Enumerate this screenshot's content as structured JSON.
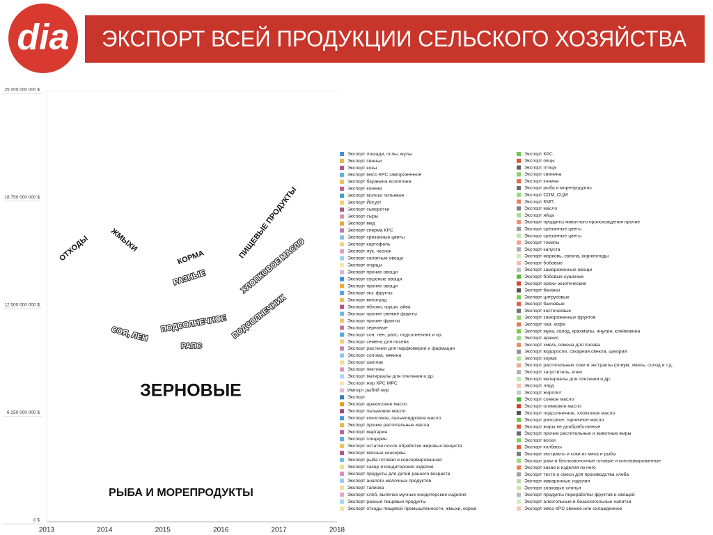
{
  "logo": "dia",
  "chart_data": {
    "type": "stacked_area",
    "title": "ЭКСПОРТ ВСЕЙ ПРОДУКЦИИ СЕЛЬСКОГО ХОЗЯЙСТВА",
    "categories": [
      "2013",
      "2014",
      "2015",
      "2016",
      "2017",
      "2018"
    ],
    "ylim": [
      0,
      25000000000
    ],
    "yticks": [
      {
        "value": 0,
        "label": "0 $"
      },
      {
        "value": 6250000000,
        "label": "6 250 000 000 $"
      },
      {
        "value": 12500000000,
        "label": "12 500 000 000 $"
      },
      {
        "value": 18750000000,
        "label": "18 750 000 000 $"
      },
      {
        "value": 25000000000,
        "label": "25 000 000 000 $"
      }
    ],
    "annotations": [
      "ОТХОДЫ",
      "ЖМЫХИ",
      "КОРМА",
      "ПИЩЕВЫЕ ПРОДУКТЫ",
      "РАЗНЫЕ",
      "ХЛОПКОВОЕ МАСЛО",
      "ПОДСОЛНЕЧНОЕ",
      "ПОДСОЛНЕЧНИК",
      "СОЯ, ЛЕН",
      "РАПС",
      "ЗЕРНОВЫЕ",
      "РЫБА И МОРЕПРОДУКТЫ"
    ],
    "series": [
      {
        "name": "Экспорт лошади, ослы, мулы",
        "color": "#4a90d9"
      },
      {
        "name": "Экспорт свиньи",
        "color": "#e8b64a"
      },
      {
        "name": "Экспорт козы",
        "color": "#b05a8e"
      },
      {
        "name": "Экспорт мясо КРС замороженное",
        "color": "#5fb0e0"
      },
      {
        "name": "Экспорт баранина козлятина",
        "color": "#f0c060"
      },
      {
        "name": "Экспорт конина",
        "color": "#c0608f"
      },
      {
        "name": "Экспорт молоко питьевое",
        "color": "#3fa0c8"
      },
      {
        "name": "Экспорт Йогурт",
        "color": "#f5d070"
      },
      {
        "name": "Экспорт сыворотки",
        "color": "#a65a88"
      },
      {
        "name": "Экспорт сыры",
        "color": "#d88fb8"
      },
      {
        "name": "Экспорт мед",
        "color": "#e8a840"
      },
      {
        "name": "Экспорт сперма КРС",
        "color": "#c878a8"
      },
      {
        "name": "Экспорт срезанные цветы",
        "color": "#7fc0e8"
      },
      {
        "name": "Экспорт картофель",
        "color": "#f2d488"
      },
      {
        "name": "Экспорт лук, чеснок",
        "color": "#d8a0c4"
      },
      {
        "name": "Экспорт салатные овощи",
        "color": "#9ccff0"
      },
      {
        "name": "Экспорт огурцы",
        "color": "#f8e4a8"
      },
      {
        "name": "Экспорт прочие овощи",
        "color": "#e0b0d0"
      },
      {
        "name": "Экспорт сушеные овощи",
        "color": "#3a8fd0"
      },
      {
        "name": "Экспорт прочие овощи",
        "color": "#f0a830"
      },
      {
        "name": "Экспорт экз. фрукты",
        "color": "#5aa0e0"
      },
      {
        "name": "Экспорт виноград",
        "color": "#e8c050"
      },
      {
        "name": "Экспорт яблоки, груши, айва",
        "color": "#b8508a"
      },
      {
        "name": "Экспорт прочие свежие фрукты",
        "color": "#70b8e8"
      },
      {
        "name": "Экспорт прочие фрукты",
        "color": "#f0c868"
      },
      {
        "name": "Экспорт зерновые",
        "color": "#c4739e"
      },
      {
        "name": "Экспорт соя, лен, рапс, подсолнечник и пр.",
        "color": "#5aa6e6"
      },
      {
        "name": "Экспорт семена для посева",
        "color": "#f0d070"
      },
      {
        "name": "Экспорт растения для парфюмерии и фармации",
        "color": "#c880b0"
      },
      {
        "name": "Экспорт солома, мякина",
        "color": "#8cc8f0"
      },
      {
        "name": "Экспорт шеллак",
        "color": "#f4dc90"
      },
      {
        "name": "Экспорт пектины",
        "color": "#d898c0"
      },
      {
        "name": "Экспорт материалы для плетения и др.",
        "color": "#a8d8f4"
      },
      {
        "name": "Экспорт жир КРС МРС",
        "color": "#f6e4b0"
      },
      {
        "name": "Импорт рыбий жир",
        "color": "#e4b8d4"
      },
      {
        "name": "Экспорт",
        "color": "#2f80c8"
      },
      {
        "name": "Экспорт арахисовое масло",
        "color": "#e8a020"
      },
      {
        "name": "Экспорт пальмовое масло",
        "color": "#a04880"
      },
      {
        "name": "Экспорт кокосовое, пальмоядровое масло",
        "color": "#4898d8"
      },
      {
        "name": "Экспорт прочие растительные масла",
        "color": "#ecb848"
      },
      {
        "name": "Экспорт маргарин",
        "color": "#b86898"
      },
      {
        "name": "Экспорт глицерин",
        "color": "#60a8e0"
      },
      {
        "name": "Экспорт остатки после обработки жировых веществ",
        "color": "#f0c458"
      },
      {
        "name": "Экспорт мясные консервы",
        "color": "#b5528c"
      },
      {
        "name": "Экспорт рыба готовая и консервированная",
        "color": "#78b8e8"
      },
      {
        "name": "Экспорт сахар и кондитерские изделия",
        "color": "#f0e08a"
      },
      {
        "name": "Экспорт продукты для детей раннего возраста",
        "color": "#d490bc"
      },
      {
        "name": "Экспорт аналоги молочных продуктов",
        "color": "#98cef0"
      },
      {
        "name": "Экспорт тапиока",
        "color": "#f4dc98"
      },
      {
        "name": "Экспорт хлеб, выпечка мучные кондитерские изделия",
        "color": "#e0a8cc"
      },
      {
        "name": "Экспорт разные пищевые продукты",
        "color": "#a9d4f2"
      },
      {
        "name": "Экспорт отходы пищевой промышленности, жмыхи, корма",
        "color": "#f5e2a8"
      },
      {
        "name": "Экспорт КРС",
        "color": "#6cc84a"
      },
      {
        "name": "Экспорт овцы",
        "color": "#e0503a"
      },
      {
        "name": "Экспорт птица",
        "color": "#606060"
      },
      {
        "name": "Экспорт свинина",
        "color": "#88d068"
      },
      {
        "name": "Экспорт конина",
        "color": "#e86848"
      },
      {
        "name": "Экспорт рыба и морепродукты",
        "color": "#6d6d6d"
      },
      {
        "name": "Экспорт СОМ, СЦМ",
        "color": "#98d880"
      },
      {
        "name": "Экспорт КМП",
        "color": "#ee8060"
      },
      {
        "name": "Экспорт масло",
        "color": "#808080"
      },
      {
        "name": "Экспорт яйца",
        "color": "#a8dc90"
      },
      {
        "name": "Экспорт продукты животного происхождения прочие",
        "color": "#f09070"
      },
      {
        "name": "Экспорт срезанные цветы",
        "color": "#989898"
      },
      {
        "name": "Экспорт срезанные цветы",
        "color": "#b8e4a8"
      },
      {
        "name": "Экспорт томаты",
        "color": "#f4a088"
      },
      {
        "name": "Экспорт капуста",
        "color": "#a8a8a8"
      },
      {
        "name": "Экспорт морковь, свекла, корнеплоды",
        "color": "#c8ecb8"
      },
      {
        "name": "Экспорт бобовые",
        "color": "#f8b8a0"
      },
      {
        "name": "Экспорт замороженные овощи",
        "color": "#c0c0c0"
      },
      {
        "name": "Экспорт бобовые сушеные",
        "color": "#5cb838"
      },
      {
        "name": "Экспорт орехи экзотические",
        "color": "#d84830"
      },
      {
        "name": "Экспорт бананы",
        "color": "#505050"
      },
      {
        "name": "Экспорт цитрусовые",
        "color": "#78c858"
      },
      {
        "name": "Экспорт бахчевые",
        "color": "#e06040"
      },
      {
        "name": "Экспорт косточковые",
        "color": "#707070"
      },
      {
        "name": "Экспорт замороженных фруктов",
        "color": "#90d070"
      },
      {
        "name": "Экспорт чай, кофе",
        "color": "#e87858"
      },
      {
        "name": "Экспорт мука, солод, крахмалы, инулин, клейковина",
        "color": "#7ac943"
      },
      {
        "name": "Экспорт арахис",
        "color": "#a0d888"
      },
      {
        "name": "Экспорт хмель семена для посева",
        "color": "#f08868"
      },
      {
        "name": "Экспорт водоросли, сахарная свекла, цикорий",
        "color": "#909090"
      },
      {
        "name": "Экспорт корма",
        "color": "#b0e098"
      },
      {
        "name": "Экспорт растительные соки и экстракты (опиум, хмель, солод и т.д.",
        "color": "#f4a890"
      },
      {
        "name": "Экспорт загуститель, клеи",
        "color": "#b0b0b0"
      },
      {
        "name": "Экспорт материалы для плетения и др.",
        "color": "#c0e8b0"
      },
      {
        "name": "Экспорт лярд",
        "color": "#f8c0a8"
      },
      {
        "name": "Экспорт жиропот",
        "color": "#c8c8c8"
      },
      {
        "name": "Экспорт соевое масло",
        "color": "#50b030"
      },
      {
        "name": "Экспорт оливковое масло",
        "color": "#d04028"
      },
      {
        "name": "Экспорт подсолнечное, хлопковое масло",
        "color": "#555555"
      },
      {
        "name": "Экспорт рапсовое, горчичное масло",
        "color": "#72c44a"
      },
      {
        "name": "Экспорт жиры не доабработанные",
        "color": "#e05838"
      },
      {
        "name": "Экспорт прочие растительные и животные жиры",
        "color": "#686868"
      },
      {
        "name": "Экспорт воски",
        "color": "#84cc64"
      },
      {
        "name": "Экспорт колбасы",
        "color": "#e0603a"
      },
      {
        "name": "Экспорт экстракты и соки из мяса и рыбы",
        "color": "#787878"
      },
      {
        "name": "Экспорт раки и беспозвоночные готовые и консервированные",
        "color": "#98d478"
      },
      {
        "name": "Экспорт какао и изделия из него",
        "color": "#ef7b5c"
      },
      {
        "name": "Экспорт тесто и смеси для производства хлеба",
        "color": "#a0a0a0"
      },
      {
        "name": "Экспорт макаронные изделия",
        "color": "#b4e0a0"
      },
      {
        "name": "Экспорт злаковые хлопья",
        "color": "#c3e6b0"
      },
      {
        "name": "Экспорт продукты переработки фруктов и овощей",
        "color": "#b8b8b8"
      },
      {
        "name": "Экспорт  алкогольные и безалкогольные напитки",
        "color": "#d0ecc4"
      },
      {
        "name": "Экспорт мясо КРС свежее или охлажденное",
        "color": "#f6c4b0"
      }
    ]
  }
}
